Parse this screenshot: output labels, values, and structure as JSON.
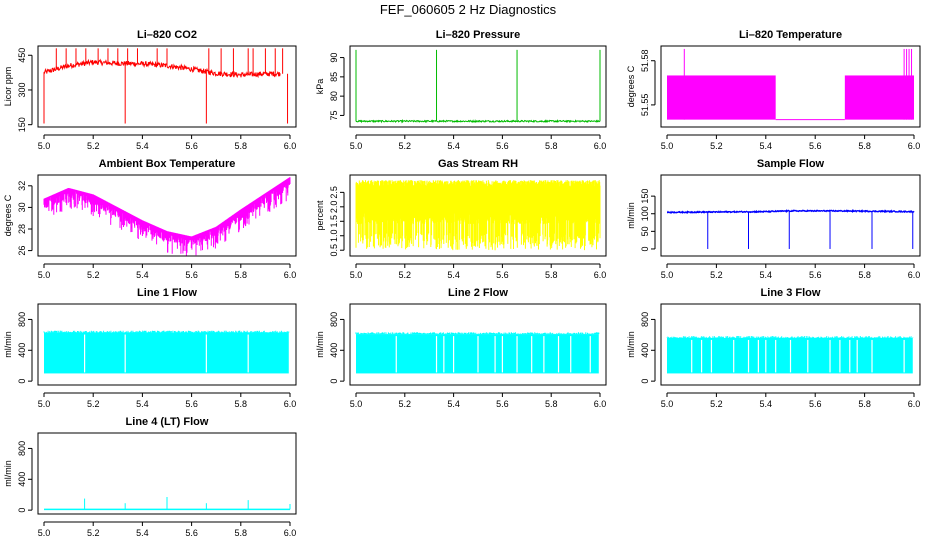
{
  "figure": {
    "title": "FEF_060605  2 Hz Diagnostics"
  },
  "colors": {
    "co2": "#ff0000",
    "pressure": "#00bb00",
    "temperature": "#ff00ff",
    "box_temp": "#ff00ff",
    "rh": "#ffff00",
    "sample_flow": "#0000ff",
    "line_flow": "#00ffff"
  },
  "chart_data": [
    {
      "id": "co2",
      "type": "line",
      "title": "Li–820 CO2",
      "ylabel": "Licor ppm",
      "xlabel": "",
      "xlim": [
        5.0,
        6.0
      ],
      "ylim": [
        140,
        490
      ],
      "xticks": [
        "5.0",
        "5.2",
        "5.4",
        "5.6",
        "5.8",
        "6.0"
      ],
      "yticks": [
        "150",
        "300",
        "450"
      ],
      "ytick_values": [
        150,
        300,
        450
      ],
      "baseline": [
        [
          5.0,
          375
        ],
        [
          5.05,
          390
        ],
        [
          5.1,
          405
        ],
        [
          5.2,
          420
        ],
        [
          5.3,
          415
        ],
        [
          5.4,
          413
        ],
        [
          5.5,
          405
        ],
        [
          5.6,
          390
        ],
        [
          5.7,
          372
        ],
        [
          5.8,
          365
        ],
        [
          5.9,
          370
        ],
        [
          5.95,
          370
        ]
      ],
      "spikes_up": [
        5.05,
        5.09,
        5.13,
        5.17,
        5.22,
        5.26,
        5.3,
        5.34,
        5.38,
        5.46,
        5.5,
        5.67,
        5.72,
        5.77,
        5.83,
        5.85,
        5.9,
        5.94,
        5.97
      ],
      "spikes_down": [
        5.0,
        5.33,
        5.66,
        5.99
      ],
      "color_key": "co2"
    },
    {
      "id": "pressure",
      "type": "line",
      "title": "Li–820 Pressure",
      "ylabel": "kPa",
      "xlabel": "",
      "xlim": [
        5.0,
        6.0
      ],
      "ylim": [
        72,
        93
      ],
      "xticks": [
        "5.0",
        "5.2",
        "5.4",
        "5.6",
        "5.8",
        "6.0"
      ],
      "yticks": [
        "75",
        "80",
        "85",
        "90"
      ],
      "ytick_values": [
        75,
        80,
        85,
        90
      ],
      "baseline_value": 73.5,
      "spikes": [
        5.0,
        5.33,
        5.66,
        6.0
      ],
      "spike_peak": 92,
      "color_key": "pressure"
    },
    {
      "id": "temperature",
      "type": "line",
      "title": "Li–820 Temperature",
      "ylabel": "degrees C",
      "xlabel": "",
      "xlim": [
        5.0,
        6.0
      ],
      "ylim": [
        51.535,
        51.59
      ],
      "xticks": [
        "5.0",
        "5.2",
        "5.4",
        "5.6",
        "5.8",
        "6.0"
      ],
      "yticks": [
        "51.55",
        "51.58"
      ],
      "ytick_values": [
        51.55,
        51.58
      ],
      "level_low": 51.54,
      "level_high": 51.57,
      "high_segments": [
        [
          5.0,
          5.44
        ],
        [
          5.72,
          6.0
        ]
      ],
      "spike_peak": 51.588,
      "spikes": [
        5.07,
        5.96,
        5.97,
        5.98,
        5.99
      ],
      "color_key": "temperature"
    },
    {
      "id": "box_temp",
      "type": "line",
      "title": "Ambient Box Temperature",
      "ylabel": "degrees C",
      "xlabel": "",
      "xlim": [
        5.0,
        6.0
      ],
      "ylim": [
        25.5,
        33
      ],
      "xticks": [
        "5.0",
        "5.2",
        "5.4",
        "5.6",
        "5.8",
        "6.0"
      ],
      "yticks": [
        "26",
        "28",
        "30",
        "32"
      ],
      "ytick_values": [
        26,
        28,
        30,
        32
      ],
      "upper": [
        [
          5.0,
          30.8
        ],
        [
          5.1,
          31.8
        ],
        [
          5.2,
          31.2
        ],
        [
          5.3,
          30.0
        ],
        [
          5.4,
          28.8
        ],
        [
          5.5,
          27.8
        ],
        [
          5.6,
          27.3
        ],
        [
          5.7,
          28.2
        ],
        [
          5.8,
          29.8
        ],
        [
          5.9,
          31.3
        ],
        [
          6.0,
          32.8
        ]
      ],
      "noise_depth": 1.0,
      "color_key": "box_temp"
    },
    {
      "id": "rh",
      "type": "area",
      "title": "Gas Stream RH",
      "ylabel": "percent",
      "xlabel": "",
      "xlim": [
        5.0,
        6.0
      ],
      "ylim": [
        0.3,
        3.1
      ],
      "xticks": [
        "5.0",
        "5.2",
        "5.4",
        "5.6",
        "5.8",
        "6.0"
      ],
      "yticks": [
        "0.5",
        "1.0",
        "1.5",
        "2.0",
        "2.5"
      ],
      "ytick_values": [
        0.5,
        1.0,
        1.5,
        2.0,
        2.5
      ],
      "band_top": 2.8,
      "band_bottom": 1.6,
      "dip_min": 0.5,
      "color_key": "rh"
    },
    {
      "id": "sample_flow",
      "type": "line",
      "title": "Sample Flow",
      "ylabel": "ml/min",
      "xlabel": "",
      "xlim": [
        5.0,
        6.0
      ],
      "ylim": [
        -20,
        210
      ],
      "xticks": [
        "5.0",
        "5.2",
        "5.4",
        "5.6",
        "5.8",
        "6.0"
      ],
      "yticks": [
        "0",
        "50",
        "100",
        "150"
      ],
      "ytick_values": [
        0,
        50,
        100,
        150
      ],
      "baseline": [
        [
          5.0,
          104
        ],
        [
          5.4,
          106
        ],
        [
          5.5,
          108
        ],
        [
          5.7,
          108
        ],
        [
          6.0,
          106
        ]
      ],
      "drops": [
        5.165,
        5.33,
        5.495,
        5.66,
        5.83,
        5.995
      ],
      "drop_min": 0,
      "color_key": "sample_flow"
    },
    {
      "id": "line1",
      "type": "area",
      "title": "Line 1 Flow",
      "ylabel": "ml/min",
      "xlabel": "",
      "xlim": [
        5.0,
        6.0
      ],
      "ylim": [
        -50,
        1000
      ],
      "xticks": [
        "5.0",
        "5.2",
        "5.4",
        "5.6",
        "5.8",
        "6.0"
      ],
      "yticks": [
        "0",
        "400",
        "800"
      ],
      "ytick_values": [
        0,
        400,
        800
      ],
      "band_top": 630,
      "band_bottom": 100,
      "gaps": [
        5.165,
        5.33,
        5.66,
        5.83
      ],
      "color_key": "line_flow"
    },
    {
      "id": "line2",
      "type": "area",
      "title": "Line 2 Flow",
      "ylabel": "ml/min",
      "xlabel": "",
      "xlim": [
        5.0,
        6.0
      ],
      "ylim": [
        -50,
        1000
      ],
      "xticks": [
        "5.0",
        "5.2",
        "5.4",
        "5.6",
        "5.8",
        "6.0"
      ],
      "yticks": [
        "0",
        "400",
        "800"
      ],
      "ytick_values": [
        0,
        400,
        800
      ],
      "band_top": 610,
      "band_bottom": 100,
      "gaps": [
        5.165,
        5.33,
        5.36,
        5.4,
        5.5,
        5.57,
        5.6,
        5.66,
        5.72,
        5.77,
        5.83,
        5.88,
        5.96
      ],
      "color_key": "line_flow"
    },
    {
      "id": "line3",
      "type": "area",
      "title": "Line 3 Flow",
      "ylabel": "ml/min",
      "xlabel": "",
      "xlim": [
        5.0,
        6.0
      ],
      "ylim": [
        -50,
        1000
      ],
      "xticks": [
        "5.0",
        "5.2",
        "5.4",
        "5.6",
        "5.8",
        "6.0"
      ],
      "yticks": [
        "0",
        "400",
        "800"
      ],
      "ytick_values": [
        0,
        400,
        800
      ],
      "band_top": 560,
      "band_bottom": 100,
      "gaps": [
        5.1,
        5.14,
        5.18,
        5.27,
        5.33,
        5.37,
        5.4,
        5.44,
        5.5,
        5.57,
        5.66,
        5.7,
        5.74,
        5.77,
        5.83,
        5.96
      ],
      "color_key": "line_flow"
    },
    {
      "id": "line4",
      "type": "line",
      "title": "Line 4 (LT) Flow",
      "ylabel": "ml/min",
      "xlabel": "",
      "xlim": [
        5.0,
        6.0
      ],
      "ylim": [
        -50,
        1000
      ],
      "xticks": [
        "5.0",
        "5.2",
        "5.4",
        "5.6",
        "5.8",
        "6.0"
      ],
      "yticks": [
        "0",
        "400",
        "800"
      ],
      "ytick_values": [
        0,
        400,
        800
      ],
      "baseline_value": 10,
      "spikes": [
        [
          5.165,
          150
        ],
        [
          5.33,
          90
        ],
        [
          5.5,
          170
        ],
        [
          5.66,
          90
        ],
        [
          5.83,
          130
        ],
        [
          6.0,
          80
        ]
      ],
      "color_key": "line_flow"
    }
  ]
}
